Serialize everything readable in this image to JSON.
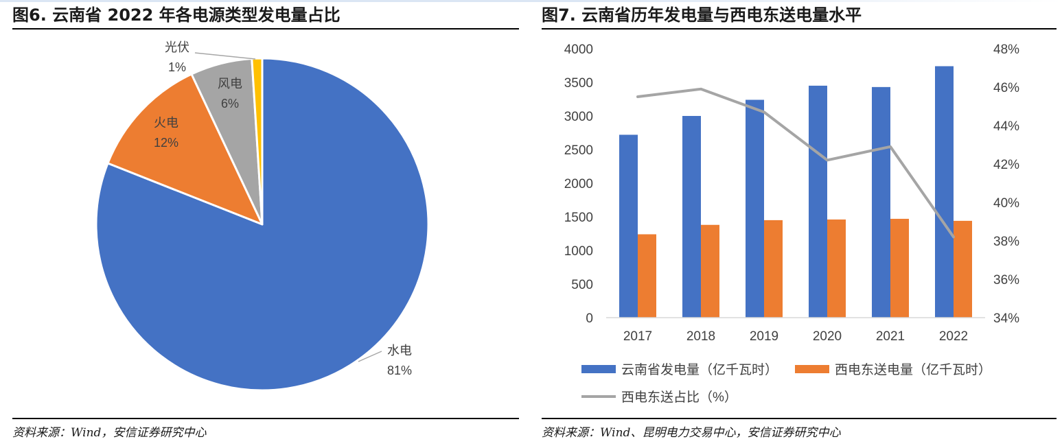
{
  "left": {
    "title": "图6. 云南省 2022 年各电源类型发电量占比",
    "source": "资料来源：Wind，安信证券研究中心"
  },
  "right": {
    "title": "图7. 云南省历年发电量与西电东送电量水平",
    "source": "资料来源：Wind、昆明电力交易中心，安信证券研究中心"
  },
  "chart_data": [
    {
      "type": "pie",
      "title": "图6. 云南省 2022 年各电源类型发电量占比",
      "slices": [
        {
          "name": "水电",
          "value": 81,
          "label": "81%",
          "color": "#4472C4"
        },
        {
          "name": "火电",
          "value": 12,
          "label": "12%",
          "color": "#ED7D31"
        },
        {
          "name": "风电",
          "value": 6,
          "label": "6%",
          "color": "#A5A5A5"
        },
        {
          "name": "光伏",
          "value": 1,
          "label": "1%",
          "color": "#FFC000"
        }
      ]
    },
    {
      "type": "bar",
      "title": "图7. 云南省历年发电量与西电东送电量水平",
      "categories": [
        "2017",
        "2018",
        "2019",
        "2020",
        "2021",
        "2022"
      ],
      "series": [
        {
          "name": "云南省发电量（亿千瓦时）",
          "type": "bar",
          "axis": "left",
          "color": "#4472C4",
          "values": [
            2720,
            3000,
            3240,
            3450,
            3430,
            3740
          ]
        },
        {
          "name": "西电东送电量（亿千瓦时）",
          "type": "bar",
          "axis": "left",
          "color": "#ED7D31",
          "values": [
            1240,
            1380,
            1450,
            1460,
            1470,
            1440
          ]
        },
        {
          "name": "西电东送占比（%）",
          "type": "line",
          "axis": "right",
          "color": "#A5A5A5",
          "values": [
            45.5,
            45.9,
            44.7,
            42.2,
            42.9,
            38.2
          ]
        }
      ],
      "ylim": [
        0,
        4000
      ],
      "yticks": [
        "0",
        "500",
        "1000",
        "1500",
        "2000",
        "2500",
        "3000",
        "3500",
        "4000"
      ],
      "y2lim": [
        34,
        48
      ],
      "y2ticks": [
        "34%",
        "36%",
        "38%",
        "40%",
        "42%",
        "44%",
        "46%",
        "48%"
      ],
      "grid": false,
      "legend": "bottom"
    }
  ]
}
